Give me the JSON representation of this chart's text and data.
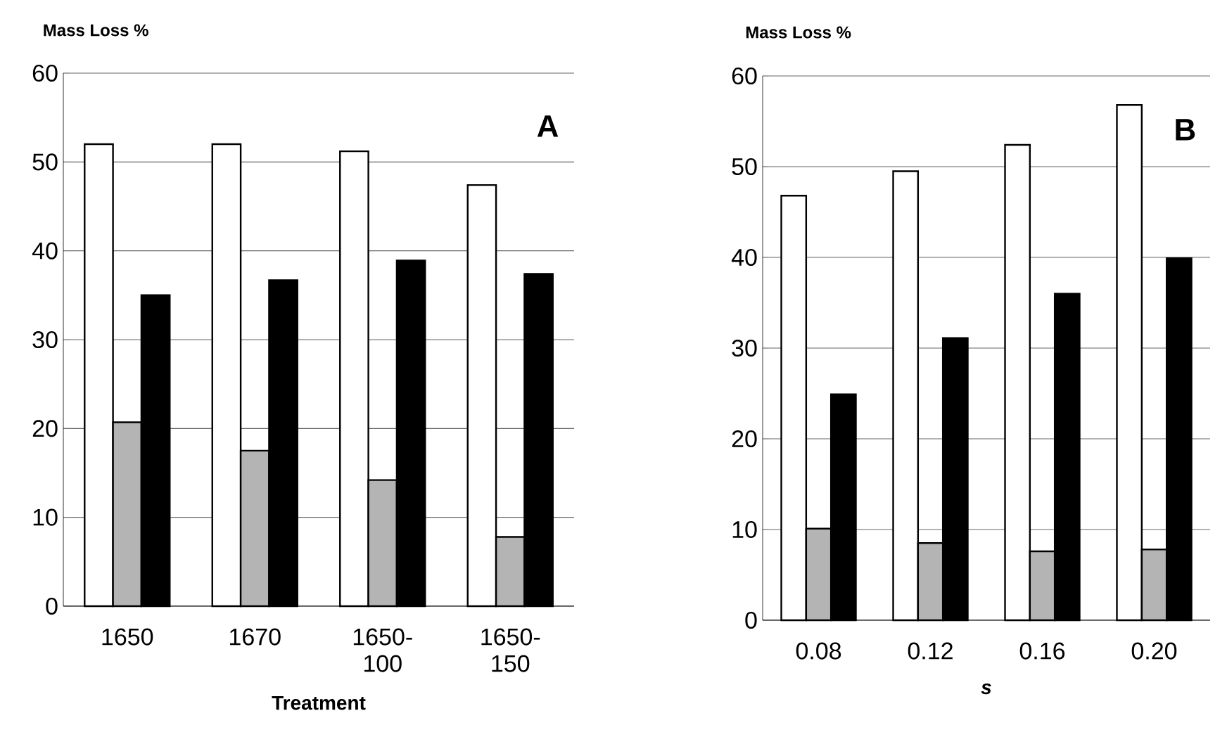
{
  "chart_data": [
    {
      "type": "bar",
      "ylabel": "Mass Loss %",
      "xlabel": "Treatment",
      "annotations": [
        "A"
      ],
      "categories": [
        "1650",
        "1670",
        "1650-100",
        "1650-150"
      ],
      "ylim": [
        0,
        60
      ],
      "yticks": [
        0,
        10,
        20,
        30,
        40,
        50,
        60
      ],
      "grid": "y",
      "series": [
        {
          "color": "#ffffff",
          "values": [
            52,
            52,
            51.2,
            47.4
          ]
        },
        {
          "color": "#b4b4b4",
          "values": [
            20.7,
            17.5,
            14.2,
            7.8
          ]
        },
        {
          "color": "#000000",
          "values": [
            35,
            36.7,
            38.9,
            37.4
          ]
        }
      ]
    },
    {
      "type": "bar",
      "ylabel": "Mass Loss %",
      "xlabel": "s",
      "annotations": [
        "B"
      ],
      "categories": [
        "0.08",
        "0.12",
        "0.16",
        "0.20"
      ],
      "ylim": [
        0,
        60
      ],
      "yticks": [
        0,
        10,
        20,
        30,
        40,
        50,
        60
      ],
      "grid": "y",
      "series": [
        {
          "color": "#ffffff",
          "values": [
            46.8,
            49.5,
            52.4,
            56.8
          ]
        },
        {
          "color": "#b4b4b4",
          "values": [
            10.1,
            8.5,
            7.6,
            7.8
          ]
        },
        {
          "color": "#000000",
          "values": [
            24.9,
            31.1,
            36,
            39.9
          ]
        }
      ]
    }
  ]
}
